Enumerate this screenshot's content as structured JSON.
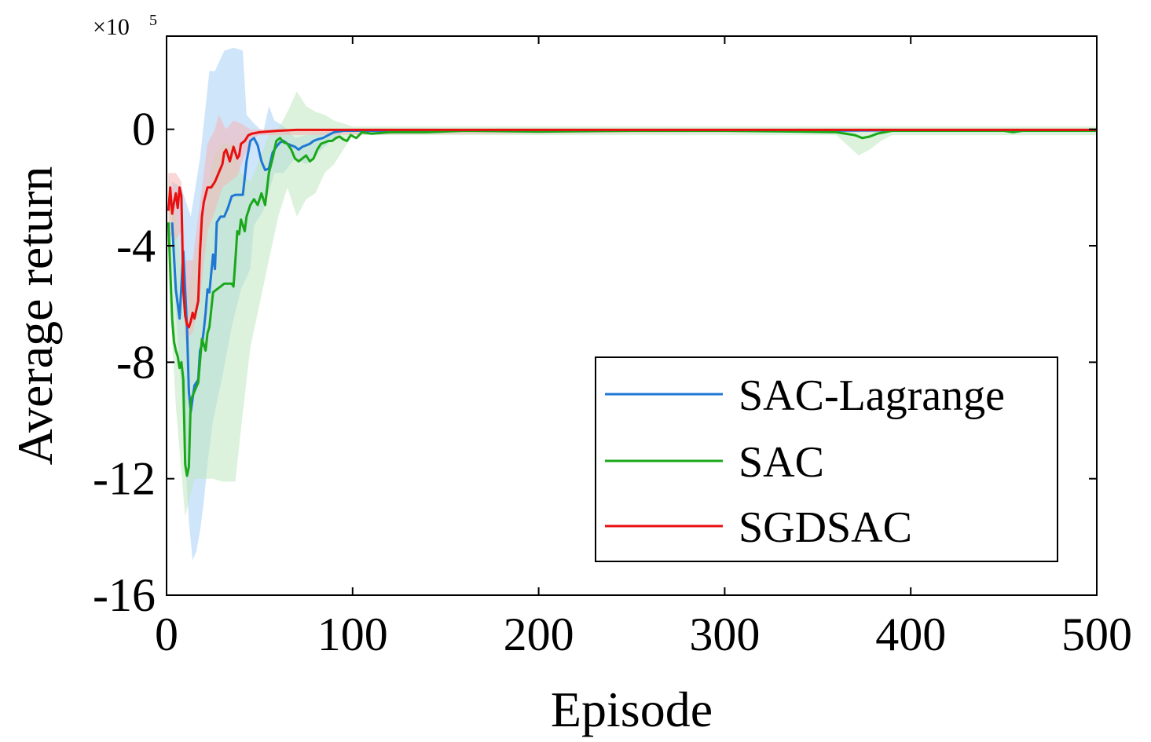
{
  "chart_data": {
    "type": "line",
    "xlabel": "Episode",
    "ylabel": "Average return",
    "y_multiplier_label": "×10",
    "y_multiplier_exp": "5",
    "xlim": [
      0,
      500
    ],
    "ylim": [
      -16,
      3.2
    ],
    "xticks": [
      0,
      100,
      200,
      300,
      400,
      500
    ],
    "xtick_labels": [
      "0",
      "100",
      "200",
      "300",
      "400",
      "500"
    ],
    "yticks": [
      0,
      -4,
      -8,
      -12,
      -16
    ],
    "ytick_labels": [
      "0",
      "-4",
      "-8",
      "-12",
      "-16"
    ],
    "grid": false,
    "legend_position": "bottom-right",
    "series": [
      {
        "name": "SAC-Lagrange",
        "color": "#1f77d4",
        "band_color": "#a8d0f5",
        "mean": [
          [
            3,
            -3.2
          ],
          [
            5,
            -5.5
          ],
          [
            7,
            -6.5
          ],
          [
            9,
            -4.2
          ],
          [
            11,
            -6.8
          ],
          [
            12,
            -9
          ],
          [
            13,
            -9.7
          ],
          [
            15,
            -8.8
          ],
          [
            17,
            -8.6
          ],
          [
            18,
            -7.6
          ],
          [
            19,
            -7.4
          ],
          [
            20,
            -6.9
          ],
          [
            21,
            -6.3
          ],
          [
            22,
            -5.5
          ],
          [
            23,
            -5.6
          ],
          [
            25,
            -4.3
          ],
          [
            26,
            -4.8
          ],
          [
            27,
            -3.2
          ],
          [
            29,
            -3.0
          ],
          [
            31,
            -3.0
          ],
          [
            33,
            -2.7
          ],
          [
            35,
            -2.3
          ],
          [
            37,
            -2.25
          ],
          [
            39,
            -2.25
          ],
          [
            41,
            -2.25
          ],
          [
            43,
            -1.1
          ],
          [
            45,
            -0.4
          ],
          [
            47,
            -0.3
          ],
          [
            49,
            -0.55
          ],
          [
            51,
            -1.1
          ],
          [
            53,
            -1.4
          ],
          [
            55,
            -1.35
          ],
          [
            57,
            -0.8
          ],
          [
            59,
            -0.6
          ],
          [
            61,
            -0.45
          ],
          [
            63,
            -0.4
          ],
          [
            65,
            -0.5
          ],
          [
            67,
            -0.55
          ],
          [
            69,
            -0.6
          ],
          [
            71,
            -0.7
          ],
          [
            73,
            -0.6
          ],
          [
            75,
            -0.55
          ],
          [
            77,
            -0.5
          ],
          [
            79,
            -0.4
          ],
          [
            81,
            -0.35
          ],
          [
            84,
            -0.3
          ],
          [
            87,
            -0.2
          ],
          [
            90,
            -0.1
          ],
          [
            95,
            -0.05
          ],
          [
            100,
            -0.05
          ],
          [
            150,
            -0.05
          ],
          [
            200,
            -0.05
          ],
          [
            250,
            -0.03
          ],
          [
            300,
            -0.05
          ],
          [
            350,
            -0.05
          ],
          [
            400,
            -0.03
          ],
          [
            450,
            -0.03
          ],
          [
            500,
            -0.03
          ]
        ],
        "upper": [
          [
            3,
            -1.8
          ],
          [
            8,
            -2
          ],
          [
            13,
            -3
          ],
          [
            18,
            -1
          ],
          [
            23,
            2.0
          ],
          [
            26,
            2.0
          ],
          [
            31,
            2.7
          ],
          [
            36,
            2.8
          ],
          [
            41,
            2.7
          ],
          [
            43,
            0.5
          ],
          [
            47,
            0.2
          ],
          [
            52,
            -0.1
          ],
          [
            55,
            0.8
          ],
          [
            58,
            0.3
          ],
          [
            63,
            0.1
          ],
          [
            69,
            -0.3
          ],
          [
            75,
            -0.2
          ],
          [
            85,
            -0.1
          ],
          [
            95,
            0.0
          ],
          [
            100,
            0.0
          ],
          [
            500,
            0.0
          ]
        ],
        "lower": [
          [
            3,
            -4.5
          ],
          [
            8,
            -9
          ],
          [
            12,
            -13.5
          ],
          [
            14,
            -14.8
          ],
          [
            16,
            -14.5
          ],
          [
            18,
            -13.8
          ],
          [
            20,
            -12.8
          ],
          [
            22,
            -11.5
          ],
          [
            25,
            -10.0
          ],
          [
            30,
            -8.5
          ],
          [
            35,
            -6.8
          ],
          [
            40,
            -5.5
          ],
          [
            45,
            -4.8
          ],
          [
            47,
            -3.3
          ],
          [
            52,
            -2.8
          ],
          [
            58,
            -1.5
          ],
          [
            63,
            -1.5
          ],
          [
            69,
            -1.0
          ],
          [
            75,
            -1.2
          ],
          [
            85,
            -0.6
          ],
          [
            95,
            -0.1
          ],
          [
            100,
            -0.1
          ],
          [
            500,
            -0.1
          ]
        ]
      },
      {
        "name": "SAC",
        "color": "#1aa81a",
        "band_color": "#bfe8bf",
        "mean": [
          [
            1,
            -3.2
          ],
          [
            2,
            -4.8
          ],
          [
            3,
            -6.5
          ],
          [
            4,
            -7.3
          ],
          [
            5,
            -7.6
          ],
          [
            6,
            -7.8
          ],
          [
            7,
            -8.2
          ],
          [
            8,
            -8.0
          ],
          [
            9,
            -8.6
          ],
          [
            10,
            -11.5
          ],
          [
            11,
            -11.9
          ],
          [
            12,
            -11.6
          ],
          [
            13,
            -9.3
          ],
          [
            15,
            -9.0
          ],
          [
            17,
            -8.7
          ],
          [
            19,
            -7.2
          ],
          [
            20,
            -7.4
          ],
          [
            21,
            -7.6
          ],
          [
            22,
            -7.0
          ],
          [
            23,
            -6.8
          ],
          [
            25,
            -5.6
          ],
          [
            27,
            -5.5
          ],
          [
            29,
            -5.4
          ],
          [
            31,
            -5.3
          ],
          [
            33,
            -5.3
          ],
          [
            35,
            -5.3
          ],
          [
            36,
            -5.4
          ],
          [
            37,
            -4.5
          ],
          [
            38,
            -3.5
          ],
          [
            39,
            -3.6
          ],
          [
            40,
            -3.1
          ],
          [
            42,
            -3.5
          ],
          [
            43,
            -3.0
          ],
          [
            45,
            -2.6
          ],
          [
            47,
            -2.4
          ],
          [
            49,
            -2.6
          ],
          [
            51,
            -2.2
          ],
          [
            53,
            -2.6
          ],
          [
            55,
            -1.5
          ],
          [
            57,
            -1.0
          ],
          [
            59,
            -0.4
          ],
          [
            61,
            -0.3
          ],
          [
            63,
            -0.45
          ],
          [
            65,
            -0.5
          ],
          [
            67,
            -0.7
          ],
          [
            69,
            -1.0
          ],
          [
            71,
            -1.1
          ],
          [
            73,
            -1.0
          ],
          [
            75,
            -0.9
          ],
          [
            77,
            -1.1
          ],
          [
            79,
            -1.0
          ],
          [
            81,
            -0.7
          ],
          [
            83,
            -0.5
          ],
          [
            85,
            -0.45
          ],
          [
            87,
            -0.4
          ],
          [
            89,
            -0.4
          ],
          [
            91,
            -0.3
          ],
          [
            93,
            -0.25
          ],
          [
            95,
            -0.35
          ],
          [
            97,
            -0.4
          ],
          [
            99,
            -0.2
          ],
          [
            102,
            -0.3
          ],
          [
            105,
            -0.1
          ],
          [
            110,
            -0.15
          ],
          [
            120,
            -0.1
          ],
          [
            140,
            -0.1
          ],
          [
            160,
            -0.05
          ],
          [
            200,
            -0.08
          ],
          [
            250,
            -0.05
          ],
          [
            300,
            -0.05
          ],
          [
            340,
            -0.08
          ],
          [
            360,
            -0.1
          ],
          [
            370,
            -0.2
          ],
          [
            374,
            -0.3
          ],
          [
            378,
            -0.25
          ],
          [
            382,
            -0.15
          ],
          [
            386,
            -0.1
          ],
          [
            390,
            -0.05
          ],
          [
            420,
            -0.05
          ],
          [
            450,
            -0.05
          ],
          [
            455,
            -0.1
          ],
          [
            460,
            -0.05
          ],
          [
            500,
            -0.05
          ]
        ],
        "upper": [
          [
            1,
            -1.5
          ],
          [
            5,
            -3
          ],
          [
            10,
            -6
          ],
          [
            15,
            -4.5
          ],
          [
            20,
            -3.0
          ],
          [
            25,
            -1.0
          ],
          [
            30,
            -0.5
          ],
          [
            36,
            -0.5
          ],
          [
            40,
            -1.5
          ],
          [
            45,
            -1.8
          ],
          [
            50,
            -1.0
          ],
          [
            55,
            -0.2
          ],
          [
            60,
            0.0
          ],
          [
            65,
            0.6
          ],
          [
            70,
            1.3
          ],
          [
            75,
            0.8
          ],
          [
            80,
            0.6
          ],
          [
            85,
            0.5
          ],
          [
            90,
            0.3
          ],
          [
            100,
            0.1
          ],
          [
            500,
            0.1
          ]
        ],
        "lower": [
          [
            1,
            -5
          ],
          [
            5,
            -9.5
          ],
          [
            10,
            -13.3
          ],
          [
            15,
            -12
          ],
          [
            20,
            -12.0
          ],
          [
            25,
            -12.0
          ],
          [
            30,
            -12.1
          ],
          [
            35,
            -12.1
          ],
          [
            37,
            -12.1
          ],
          [
            40,
            -10.3
          ],
          [
            45,
            -7.5
          ],
          [
            50,
            -6.0
          ],
          [
            55,
            -4.5
          ],
          [
            60,
            -3.0
          ],
          [
            65,
            -2.0
          ],
          [
            70,
            -3.0
          ],
          [
            75,
            -2.4
          ],
          [
            80,
            -2.2
          ],
          [
            85,
            -1.5
          ],
          [
            90,
            -1.2
          ],
          [
            100,
            -0.2
          ],
          [
            360,
            -0.2
          ],
          [
            372,
            -0.9
          ],
          [
            378,
            -0.7
          ],
          [
            384,
            -0.4
          ],
          [
            390,
            -0.2
          ],
          [
            500,
            -0.2
          ]
        ]
      },
      {
        "name": "SGDSAC",
        "color": "#e81010",
        "band_color": "#f5b4b4",
        "mean": [
          [
            1,
            -2.8
          ],
          [
            2,
            -2.0
          ],
          [
            3,
            -2.9
          ],
          [
            4,
            -2.5
          ],
          [
            5,
            -2.2
          ],
          [
            6,
            -2.7
          ],
          [
            7,
            -2.0
          ],
          [
            8,
            -2.3
          ],
          [
            9,
            -5.5
          ],
          [
            10,
            -6.4
          ],
          [
            11,
            -6.7
          ],
          [
            12,
            -6.8
          ],
          [
            13,
            -6.6
          ],
          [
            14,
            -6.3
          ],
          [
            15,
            -6.5
          ],
          [
            16,
            -6.2
          ],
          [
            17,
            -5.9
          ],
          [
            18,
            -4.2
          ],
          [
            19,
            -3.0
          ],
          [
            20,
            -2.5
          ],
          [
            22,
            -2.0
          ],
          [
            24,
            -2.0
          ],
          [
            26,
            -1.8
          ],
          [
            28,
            -1.5
          ],
          [
            30,
            -1.2
          ],
          [
            31,
            -0.8
          ],
          [
            32,
            -0.7
          ],
          [
            34,
            -1.1
          ],
          [
            36,
            -0.6
          ],
          [
            38,
            -1.0
          ],
          [
            39,
            -0.9
          ],
          [
            40,
            -0.5
          ],
          [
            42,
            -0.4
          ],
          [
            44,
            -0.2
          ],
          [
            46,
            -0.15
          ],
          [
            50,
            -0.1
          ],
          [
            60,
            -0.05
          ],
          [
            70,
            -0.02
          ],
          [
            100,
            -0.02
          ],
          [
            500,
            -0.02
          ]
        ],
        "upper": [
          [
            1,
            -1.5
          ],
          [
            5,
            -1.5
          ],
          [
            8,
            -1.8
          ],
          [
            10,
            -4.5
          ],
          [
            14,
            -4.5
          ],
          [
            18,
            -2.5
          ],
          [
            22,
            -0.5
          ],
          [
            26,
            0.0
          ],
          [
            28,
            0.5
          ],
          [
            32,
            0.0
          ],
          [
            36,
            0.3
          ],
          [
            40,
            0.2
          ],
          [
            45,
            0.0
          ],
          [
            50,
            0.0
          ],
          [
            500,
            0.0
          ]
        ],
        "lower": [
          [
            1,
            -3.6
          ],
          [
            5,
            -3.8
          ],
          [
            8,
            -3.5
          ],
          [
            10,
            -7.2
          ],
          [
            14,
            -7.0
          ],
          [
            18,
            -5.8
          ],
          [
            22,
            -3.5
          ],
          [
            26,
            -2.8
          ],
          [
            30,
            -2.0
          ],
          [
            34,
            -1.8
          ],
          [
            38,
            -1.6
          ],
          [
            42,
            -0.9
          ],
          [
            46,
            -0.3
          ],
          [
            50,
            -0.2
          ],
          [
            500,
            -0.05
          ]
        ]
      }
    ]
  }
}
